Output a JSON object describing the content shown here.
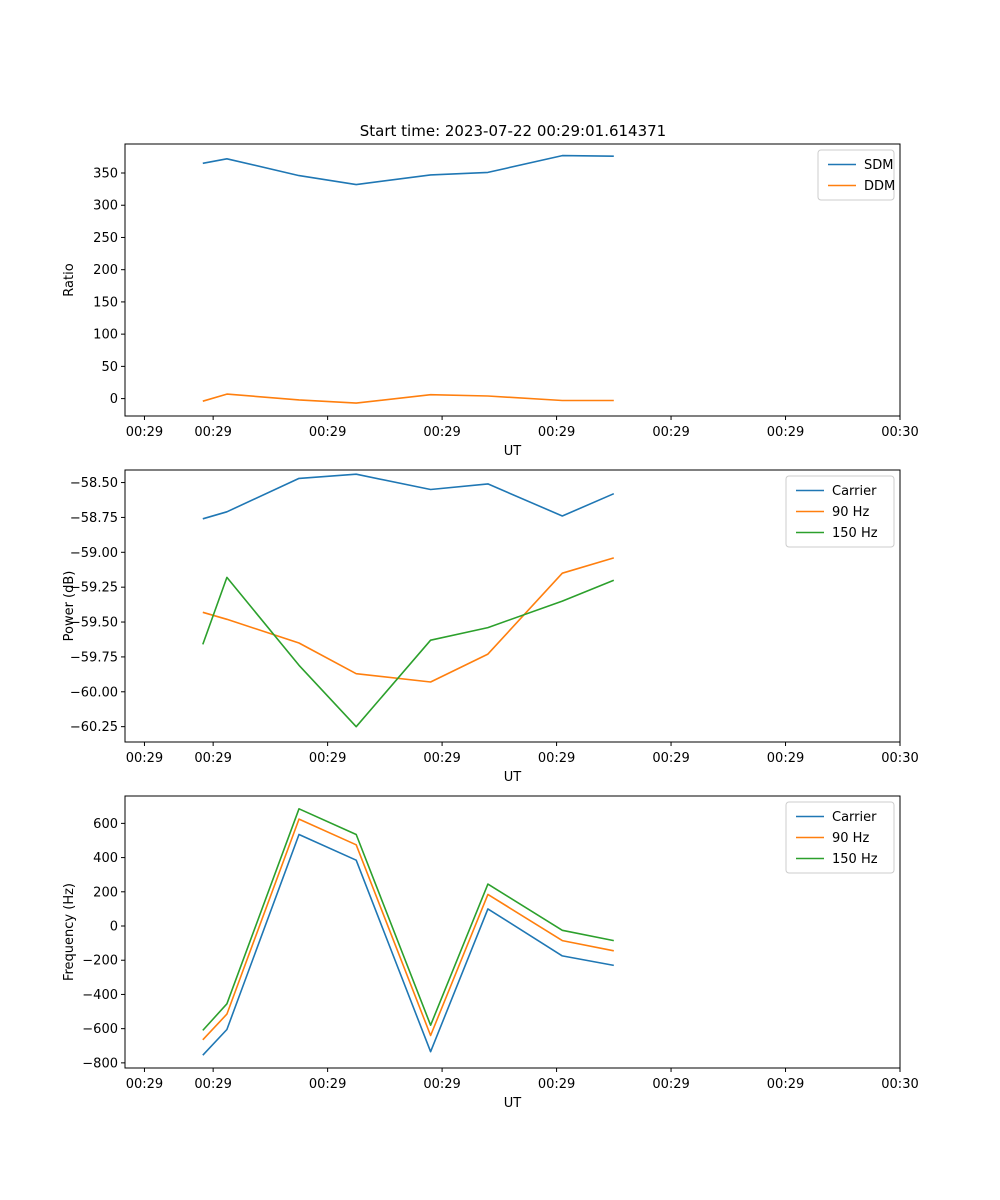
{
  "title": "Start time: 2023-07-22 00:29:01.614371",
  "chart_data": [
    {
      "type": "line",
      "title": "Start time: 2023-07-22 00:29:01.614371",
      "xlabel": "UT",
      "ylabel": "Ratio",
      "x_ticks": [
        "00:29",
        "00:29",
        "00:29",
        "00:29",
        "00:29",
        "00:29",
        "00:29",
        "00:30"
      ],
      "x_tick_values": [
        -0.6,
        0,
        1,
        2,
        3,
        4,
        5,
        6
      ],
      "xlim": [
        -0.77,
        6.0
      ],
      "ylim": [
        -27,
        395
      ],
      "y_ticks": [
        0,
        50,
        100,
        150,
        200,
        250,
        300,
        350
      ],
      "y_tick_labels": [
        "0",
        "50",
        "100",
        "150",
        "200",
        "250",
        "300",
        "350"
      ],
      "legend_position": "top-right",
      "x": [
        -0.09,
        0.12,
        0.75,
        1.25,
        1.9,
        2.4,
        3.05,
        3.5
      ],
      "series": [
        {
          "name": "SDM",
          "color": "#1f77b4",
          "values": [
            365,
            372,
            346,
            332,
            347,
            351,
            377,
            376
          ]
        },
        {
          "name": "DDM",
          "color": "#ff7f0e",
          "values": [
            -4,
            7,
            -2,
            -7,
            6,
            4,
            -3,
            -3
          ]
        }
      ]
    },
    {
      "type": "line",
      "xlabel": "UT",
      "ylabel": "Power (dB)",
      "x_ticks": [
        "00:29",
        "00:29",
        "00:29",
        "00:29",
        "00:29",
        "00:29",
        "00:29",
        "00:30"
      ],
      "x_tick_values": [
        -0.6,
        0,
        1,
        2,
        3,
        4,
        5,
        6
      ],
      "xlim": [
        -0.77,
        6.0
      ],
      "ylim": [
        -60.36,
        -58.41
      ],
      "y_ticks": [
        -60.25,
        -60.0,
        -59.75,
        -59.5,
        -59.25,
        -59.0,
        -58.75,
        -58.5
      ],
      "y_tick_labels": [
        "−60.25",
        "−60.00",
        "−59.75",
        "−59.50",
        "−59.25",
        "−59.00",
        "−58.75",
        "−58.50"
      ],
      "legend_position": "top-right",
      "x": [
        -0.09,
        0.12,
        0.75,
        1.25,
        1.9,
        2.4,
        3.05,
        3.5
      ],
      "series": [
        {
          "name": "Carrier",
          "color": "#1f77b4",
          "values": [
            -58.76,
            -58.71,
            -58.47,
            -58.44,
            -58.55,
            -58.51,
            -58.74,
            -58.58
          ]
        },
        {
          "name": "90 Hz",
          "color": "#ff7f0e",
          "values": [
            -59.43,
            -59.48,
            -59.65,
            -59.87,
            -59.93,
            -59.73,
            -59.15,
            -59.04
          ]
        },
        {
          "name": "150 Hz",
          "color": "#2ca02c",
          "values": [
            -59.66,
            -59.18,
            -59.81,
            -60.25,
            -59.63,
            -59.54,
            -59.35,
            -59.2
          ]
        }
      ]
    },
    {
      "type": "line",
      "xlabel": "UT",
      "ylabel": "Frequency (Hz)",
      "x_ticks": [
        "00:29",
        "00:29",
        "00:29",
        "00:29",
        "00:29",
        "00:29",
        "00:29",
        "00:30"
      ],
      "x_tick_values": [
        -0.6,
        0,
        1,
        2,
        3,
        4,
        5,
        6
      ],
      "xlim": [
        -0.77,
        6.0
      ],
      "ylim": [
        -830,
        760
      ],
      "y_ticks": [
        -800,
        -600,
        -400,
        -200,
        0,
        200,
        400,
        600
      ],
      "y_tick_labels": [
        "−800",
        "−600",
        "−400",
        "−200",
        "0",
        "200",
        "400",
        "600"
      ],
      "legend_position": "top-right",
      "x": [
        -0.09,
        0.12,
        0.75,
        1.25,
        1.9,
        2.4,
        3.05,
        3.5
      ],
      "series": [
        {
          "name": "Carrier",
          "color": "#1f77b4",
          "values": [
            -755,
            -605,
            535,
            385,
            -735,
            100,
            -175,
            -230
          ]
        },
        {
          "name": "90 Hz",
          "color": "#ff7f0e",
          "values": [
            -665,
            -515,
            625,
            475,
            -640,
            185,
            -85,
            -145
          ]
        },
        {
          "name": "150 Hz",
          "color": "#2ca02c",
          "values": [
            -610,
            -455,
            685,
            535,
            -580,
            245,
            -25,
            -85
          ]
        }
      ]
    }
  ]
}
